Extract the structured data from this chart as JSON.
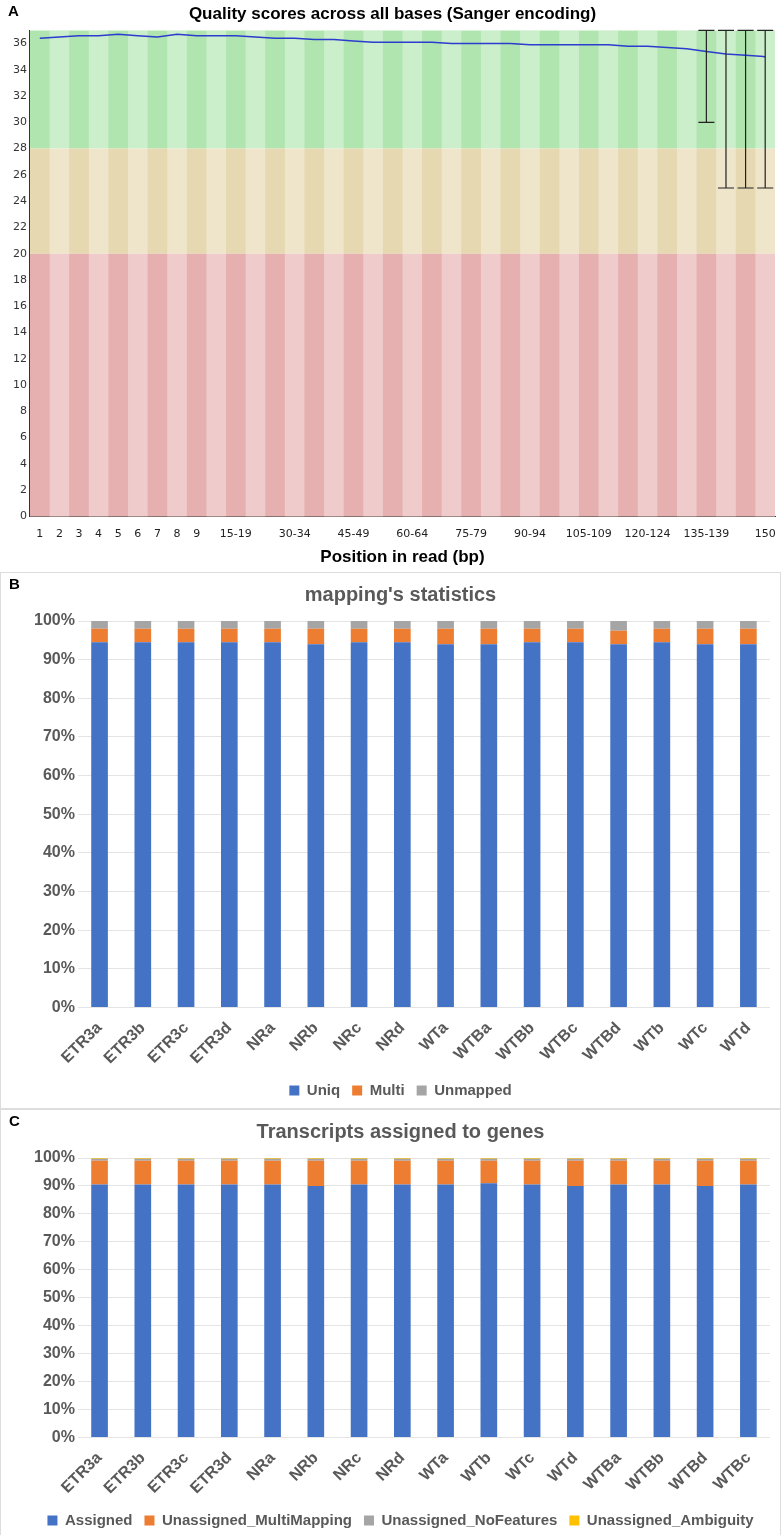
{
  "chart_data": [
    {
      "type": "line",
      "title": "Quality scores across all bases (Sanger encoding)",
      "xlabel": "Position in read (bp)",
      "annotations": [
        "A"
      ],
      "categories": [
        "1",
        "2",
        "3",
        "4",
        "5",
        "6",
        "7",
        "8",
        "9",
        null,
        "15-19",
        null,
        null,
        "30-34",
        null,
        null,
        "45-49",
        null,
        null,
        "60-64",
        null,
        null,
        "75-79",
        null,
        null,
        "90-94",
        null,
        null,
        "105-109",
        null,
        null,
        "120-124",
        null,
        null,
        "135-139",
        null,
        null,
        "150"
      ],
      "series": [
        {
          "color": "#2b3ccf",
          "values": [
            36.4,
            36.5,
            36.6,
            36.6,
            36.7,
            36.6,
            36.5,
            36.7,
            36.6,
            36.6,
            36.6,
            36.5,
            36.4,
            36.4,
            36.3,
            36.3,
            36.2,
            36.1,
            36.1,
            36.1,
            36.1,
            36.0,
            36.0,
            36.0,
            36.0,
            35.9,
            35.9,
            35.9,
            35.9,
            35.9,
            35.8,
            35.8,
            35.7,
            35.6,
            35.4,
            35.2,
            35.1,
            35.0
          ],
          "errors": [
            null,
            null,
            null,
            null,
            null,
            null,
            null,
            null,
            null,
            null,
            null,
            null,
            null,
            null,
            null,
            null,
            null,
            null,
            null,
            null,
            null,
            null,
            null,
            null,
            null,
            null,
            null,
            null,
            null,
            null,
            null,
            null,
            null,
            null,
            [
              30,
              37
            ],
            [
              25,
              37
            ],
            [
              25,
              37
            ],
            [
              25,
              37
            ]
          ]
        }
      ],
      "ylim": [
        0,
        37
      ],
      "yticks": [
        0,
        2,
        4,
        6,
        8,
        10,
        12,
        14,
        16,
        18,
        20,
        22,
        24,
        26,
        28,
        30,
        32,
        34,
        36
      ],
      "grid": false,
      "legend": false,
      "marker": "none",
      "bands": [
        {
          "axis": "y",
          "from": 28,
          "to": 37,
          "color": "#b0e5b0"
        },
        {
          "axis": "y",
          "from": 20,
          "to": 28,
          "color": "#e6d8b0"
        },
        {
          "axis": "y",
          "from": 0,
          "to": 20,
          "color": "#e6b0b0"
        }
      ]
    },
    {
      "type": "bar",
      "title": "mapping's statistics",
      "annotations": [
        "B"
      ],
      "stacked": true,
      "legend": "bottom",
      "grid": "y",
      "categories": [
        "ETR3a",
        "ETR3b",
        "ETR3c",
        "ETR3d",
        "NRa",
        "NRb",
        "NRc",
        "NRd",
        "WTa",
        "WTBa",
        "WTBb",
        "WTBc",
        "WTBd",
        "WTb",
        "WTc",
        "WTd"
      ],
      "series": [
        {
          "name": "Uniq",
          "color": "#4472c4",
          "values": [
            94.5,
            94.5,
            94.5,
            94.5,
            94.5,
            94,
            94.5,
            94.5,
            94,
            94,
            94.5,
            94.5,
            94,
            94.5,
            94,
            94
          ]
        },
        {
          "name": "Multi",
          "color": "#ed7d31",
          "values": [
            3.5,
            3.5,
            3.5,
            3.5,
            3.5,
            4,
            3.5,
            3.5,
            4,
            4,
            3.5,
            3.5,
            3.5,
            3.5,
            4,
            4
          ]
        },
        {
          "name": "Unmapped",
          "color": "#a5a5a5",
          "values": [
            2,
            2,
            2,
            2,
            2,
            2,
            2,
            2,
            2,
            2,
            2,
            2,
            2.5,
            2,
            2,
            2
          ]
        }
      ],
      "ylim": [
        0,
        100
      ],
      "yticks": [
        {
          "value": 0,
          "label": "0%"
        },
        {
          "value": 10,
          "label": "10%"
        },
        {
          "value": 20,
          "label": "20%"
        },
        {
          "value": 30,
          "label": "30%"
        },
        {
          "value": 40,
          "label": "40%"
        },
        {
          "value": 50,
          "label": "50%"
        },
        {
          "value": 60,
          "label": "60%"
        },
        {
          "value": 70,
          "label": "70%"
        },
        {
          "value": 80,
          "label": "80%"
        },
        {
          "value": 90,
          "label": "90%"
        },
        {
          "value": 100,
          "label": "100%"
        }
      ]
    },
    {
      "type": "bar",
      "title": "Transcripts assigned to genes",
      "annotations": [
        "C"
      ],
      "stacked": true,
      "legend": "bottom",
      "grid": "y",
      "categories": [
        "ETR3a",
        "ETR3b",
        "ETR3c",
        "ETR3d",
        "NRa",
        "NRb",
        "NRc",
        "NRd",
        "WTa",
        "WTb",
        "WTc",
        "WTd",
        "WTBa",
        "WTBb",
        "WTBd",
        "WTBc"
      ],
      "series": [
        {
          "name": "Assigned",
          "color": "#4472c4",
          "values": [
            90.5,
            90.5,
            90.5,
            90.5,
            90.5,
            90,
            90.5,
            90.5,
            90.5,
            91,
            90.5,
            90,
            90.5,
            90.5,
            90,
            90.5
          ]
        },
        {
          "name": "Unassigned_MultiMapping",
          "color": "#ed7d31",
          "values": [
            8.5,
            8.5,
            8.5,
            8.5,
            8.5,
            9,
            8.5,
            8.5,
            8.5,
            8,
            8.5,
            9,
            8.5,
            8.5,
            9,
            8.5
          ]
        },
        {
          "name": "Unassigned_NoFeatures",
          "color": "#a5a5a5",
          "values": [
            0.7,
            0.7,
            0.7,
            0.7,
            0.7,
            0.7,
            0.7,
            0.7,
            0.7,
            0.7,
            0.7,
            0.7,
            0.7,
            0.7,
            0.7,
            0.7
          ]
        },
        {
          "name": "Unassigned_Ambiguity",
          "color": "#ffc000",
          "values": [
            0.3,
            0.3,
            0.3,
            0.3,
            0.3,
            0.3,
            0.3,
            0.3,
            0.3,
            0.3,
            0.3,
            0.3,
            0.3,
            0.3,
            0.3,
            0.3
          ]
        }
      ],
      "ylim": [
        0,
        100
      ],
      "yticks": [
        {
          "value": 0,
          "label": "0%"
        },
        {
          "value": 10,
          "label": "10%"
        },
        {
          "value": 20,
          "label": "20%"
        },
        {
          "value": 30,
          "label": "30%"
        },
        {
          "value": 40,
          "label": "40%"
        },
        {
          "value": 50,
          "label": "50%"
        },
        {
          "value": 60,
          "label": "60%"
        },
        {
          "value": 70,
          "label": "70%"
        },
        {
          "value": 80,
          "label": "80%"
        },
        {
          "value": 90,
          "label": "90%"
        },
        {
          "value": 100,
          "label": "100%"
        }
      ]
    }
  ]
}
